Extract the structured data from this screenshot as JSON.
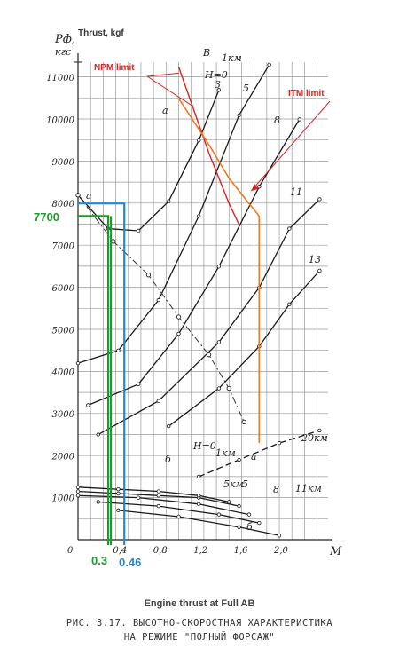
{
  "chart_data": {
    "type": "line",
    "title": "Engine thrust at Full AB",
    "caption_lines": [
      "РИС. 3.17. ВЫСОТНО-СКОРОСТНАЯ ХАРАКТЕРИСТИКА",
      "НА РЕЖИМЕ \"ПОЛНЫЙ ФОРСАЖ\""
    ],
    "ylabel": "Pф,",
    "ylabel_unit": "кгс",
    "ylabel_en": "Thrust, kgf",
    "xlabel": "M",
    "xlim": [
      0,
      2.4
    ],
    "ylim": [
      0,
      11600
    ],
    "x_ticks": [
      "0",
      "0,4",
      "0,8",
      "1,2",
      "1,6",
      "2,0"
    ],
    "y_ticks": [
      "1000",
      "2000",
      "3000",
      "4000",
      "5000",
      "6000",
      "7000",
      "8000",
      "9000",
      "10000",
      "11000"
    ],
    "grid": true,
    "series": [
      {
        "name": "0",
        "values": [
          [
            0.0,
            8200
          ],
          [
            0.3,
            7400
          ],
          [
            0.6,
            7350
          ],
          [
            0.9,
            8050
          ],
          [
            1.2,
            9500
          ],
          [
            1.4,
            10700
          ]
        ]
      },
      {
        "name": "5",
        "values": [
          [
            0.0,
            4200
          ],
          [
            0.4,
            4500
          ],
          [
            0.8,
            5700
          ],
          [
            1.2,
            7700
          ],
          [
            1.6,
            10100
          ],
          [
            1.9,
            11300
          ]
        ]
      },
      {
        "name": "8",
        "values": [
          [
            0.1,
            3200
          ],
          [
            0.6,
            3700
          ],
          [
            1.0,
            4900
          ],
          [
            1.4,
            6500
          ],
          [
            1.8,
            8400
          ],
          [
            2.2,
            10000
          ]
        ]
      },
      {
        "name": "11",
        "values": [
          [
            0.2,
            2500
          ],
          [
            0.8,
            3300
          ],
          [
            1.4,
            4700
          ],
          [
            1.8,
            6000
          ],
          [
            2.1,
            7400
          ],
          [
            2.4,
            8100
          ]
        ]
      },
      {
        "name": "13",
        "values": [
          [
            0.9,
            2700
          ],
          [
            1.4,
            3600
          ],
          [
            1.8,
            4600
          ],
          [
            2.1,
            5600
          ],
          [
            2.4,
            6400
          ]
        ]
      },
      {
        "name": "20км",
        "values": [
          [
            1.2,
            1500
          ],
          [
            1.6,
            1900
          ],
          [
            2.0,
            2300
          ],
          [
            2.4,
            2600
          ]
        ]
      },
      {
        "name": "H=0 (lower)",
        "values": [
          [
            0.0,
            1150
          ],
          [
            0.4,
            1100
          ],
          [
            0.8,
            1050
          ],
          [
            1.2,
            1000
          ],
          [
            1.6,
            800
          ]
        ]
      },
      {
        "name": "1км",
        "values": [
          [
            0.0,
            1250
          ],
          [
            0.4,
            1200
          ],
          [
            0.8,
            1150
          ],
          [
            1.2,
            1050
          ],
          [
            1.5,
            900
          ]
        ]
      },
      {
        "name": "5км",
        "values": [
          [
            0.0,
            1050
          ],
          [
            0.6,
            1000
          ],
          [
            1.2,
            850
          ],
          [
            1.7,
            600
          ]
        ]
      },
      {
        "name": "8 (lower)",
        "values": [
          [
            0.2,
            900
          ],
          [
            0.8,
            800
          ],
          [
            1.4,
            600
          ],
          [
            1.8,
            400
          ]
        ]
      },
      {
        "name": "11км",
        "values": [
          [
            0.4,
            700
          ],
          [
            1.0,
            550
          ],
          [
            1.6,
            300
          ],
          [
            2.0,
            100
          ]
        ]
      }
    ],
    "npm_limit": [
      [
        1.0,
        11250
      ],
      [
        1.3,
        9200
      ],
      [
        1.5,
        8000
      ],
      [
        1.6,
        7500
      ]
    ],
    "itm_limit": [
      [
        1.0,
        10500
      ],
      [
        1.3,
        9400
      ],
      [
        1.5,
        8600
      ],
      [
        1.7,
        8000
      ],
      [
        1.8,
        7700
      ],
      [
        1.8,
        2300
      ]
    ],
    "highlights": {
      "green": {
        "y": 7700,
        "x": 0.3
      },
      "blue": {
        "y": 8000,
        "x": 0.46
      }
    },
    "annotations": {
      "npm": "NPM limit",
      "itm": "ITM limit",
      "green_y": "7700",
      "green_x": "0.3",
      "blue_x": "0.46"
    },
    "curve_labels": {
      "top_b": "В",
      "top_1km": "1км",
      "top_h0": "H=0",
      "top_a": "а",
      "top_3": "3",
      "top_5": "5",
      "top_8": "8",
      "top_11": "11",
      "top_13": "13",
      "left_a": "а",
      "lower_20km": "20км",
      "lower_h0": "H=0",
      "lower_1km": "1км",
      "lower_b": "б",
      "lower_5km": "5км",
      "lower_5": "5",
      "lower_8": "8",
      "lower_11km": "11км",
      "lower_b2": "б",
      "lower_a": "а"
    }
  }
}
